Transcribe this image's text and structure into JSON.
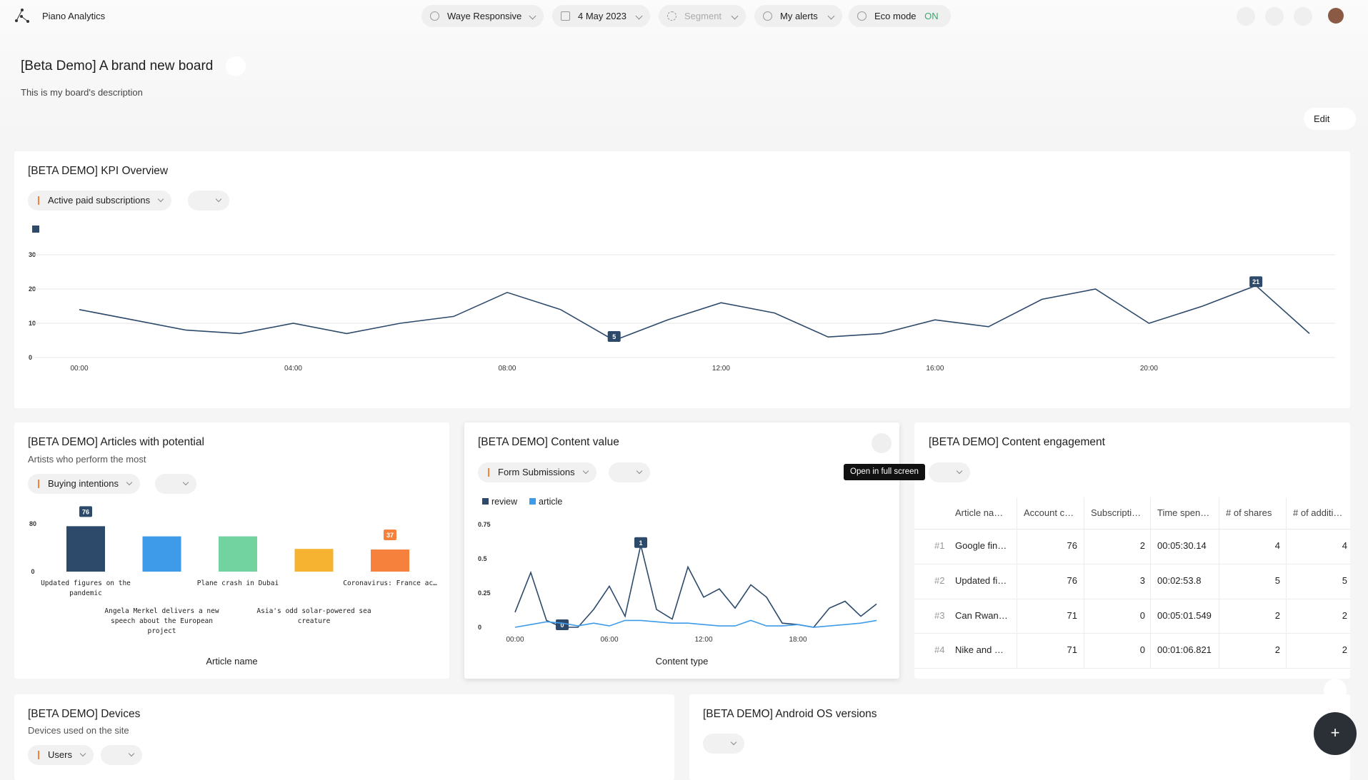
{
  "header": {
    "app": "Piano Analytics",
    "site": "Waye Responsive",
    "date": "4 May 2023",
    "segment": "Segment",
    "alerts": "My alerts",
    "eco": "Eco mode",
    "eco_state": "ON"
  },
  "board": {
    "title": "[Beta Demo] A brand new board",
    "description": "This is my board's description",
    "edit": "Edit"
  },
  "chart_data": [
    {
      "type": "line",
      "title": "[BETA DEMO] KPI Overview",
      "metric": "Active paid subscriptions",
      "categories": [
        "00:00",
        null,
        null,
        null,
        "04:00",
        null,
        null,
        null,
        "08:00",
        null,
        null,
        null,
        "12:00",
        null,
        null,
        null,
        "16:00",
        null,
        null,
        null,
        "20:00",
        null,
        null,
        null
      ],
      "series": [
        {
          "color": "#2d4a6b",
          "values": [
            14,
            11,
            8,
            7,
            10,
            7,
            10,
            12,
            19,
            14,
            5,
            11,
            16,
            13,
            6,
            7,
            11,
            9,
            17,
            20,
            10,
            15,
            21,
            7
          ]
        }
      ],
      "ylim": [
        0,
        30
      ],
      "yticks": [
        0,
        10,
        20,
        30
      ],
      "grid": true
    },
    {
      "type": "bar",
      "title": "[BETA DEMO] Articles with potential",
      "subtitle": "Artists who perform the most",
      "metric": "Buying intentions",
      "x_label": "Article name",
      "categories": [
        "Updated figures on the pandemic",
        "Angela Merkel delivers a new speech about the European project",
        "Plane crash in Dubai",
        "Asia's odd solar-powered sea creature",
        "Coronavirus: France ac…"
      ],
      "values": [
        76,
        59,
        59,
        38,
        37
      ],
      "colors": [
        "#2d4a6b",
        "#3d9be9",
        "#72d3a0",
        "#f5b331",
        "#f5813d"
      ],
      "ylim": [
        0,
        80
      ],
      "yticks": [
        0,
        80
      ],
      "grid": false
    },
    {
      "type": "line",
      "title": "[BETA DEMO] Content value",
      "metric": "Form Submissions",
      "x_label": "Content type",
      "tooltip": "Open in full screen",
      "categories": [
        "00:00",
        null,
        null,
        null,
        null,
        null,
        "06:00",
        null,
        null,
        null,
        null,
        null,
        "12:00",
        null,
        null,
        null,
        null,
        null,
        "18:00",
        null,
        null,
        null,
        null,
        null
      ],
      "series": [
        {
          "name": "review",
          "color": "#2d4a6b",
          "values": [
            0.11,
            0.4,
            0.05,
            0,
            0,
            0.13,
            0.3,
            0.08,
            0.6,
            0.13,
            0.06,
            0.44,
            0.22,
            0.28,
            0.14,
            0.31,
            0.22,
            0.03,
            0.02,
            0,
            0.14,
            0.19,
            0.08,
            0.17
          ],
          "value_labels": [
            null,
            null,
            null,
            "0",
            null,
            null,
            null,
            null,
            "1",
            null,
            null,
            null,
            null,
            null,
            null,
            null,
            null,
            null,
            null,
            null,
            null,
            null,
            null,
            null
          ]
        },
        {
          "name": "article",
          "color": "#3d9be9",
          "values": [
            0,
            0.02,
            0.04,
            0.03,
            0.01,
            0.03,
            0.01,
            0.05,
            0.05,
            0.04,
            0.03,
            0.03,
            0.02,
            0.01,
            0.01,
            0.05,
            0.01,
            0.01,
            0.02,
            0,
            0.01,
            0.02,
            0.03,
            0.05
          ]
        }
      ],
      "ylim": [
        0,
        0.75
      ],
      "yticks": [
        0,
        0.25,
        0.5,
        0.75
      ],
      "grid": false
    }
  ],
  "table_widget": {
    "title": "[BETA DEMO] Content engagement",
    "columns": [
      "Article na…",
      "Account c…",
      "Subscripti…",
      "Time spen…",
      "# of shares",
      "# of additi…"
    ],
    "rows": [
      [
        "#1",
        "Google fin…",
        76,
        2,
        "00:05:30.14",
        4,
        4
      ],
      [
        "#2",
        "Updated fi…",
        76,
        3,
        "00:02:53.8",
        5,
        5
      ],
      [
        "#3",
        "Can Rwan…",
        71,
        0,
        "00:05:01.549",
        2,
        2
      ],
      [
        "#4",
        "Nike and …",
        71,
        0,
        "00:01:06.821",
        2,
        2
      ]
    ]
  },
  "widgets": [
    {
      "title": "[BETA DEMO] Devices",
      "subtitle": "Devices used on the site",
      "metric": "Users"
    },
    {
      "title": "[BETA DEMO] Android OS versions"
    }
  ]
}
